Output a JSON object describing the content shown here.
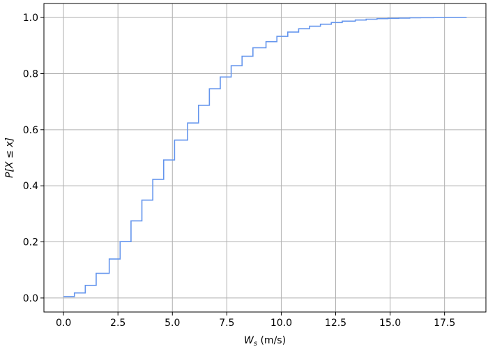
{
  "chart_data": {
    "type": "line",
    "title": "",
    "xlabel_main": "W",
    "xlabel_sub": "s",
    "xlabel_unit": " (m/s)",
    "ylabel": "P[X ≤ x]",
    "xlim": [
      -0.9,
      19.4
    ],
    "ylim": [
      -0.05,
      1.05
    ],
    "xticks": [
      0.0,
      2.5,
      5.0,
      7.5,
      10.0,
      12.5,
      15.0,
      17.5
    ],
    "xtick_labels": [
      "0.0",
      "2.5",
      "5.0",
      "7.5",
      "10.0",
      "12.5",
      "15.0",
      "17.5"
    ],
    "yticks": [
      0.0,
      0.2,
      0.4,
      0.6,
      0.8,
      1.0
    ],
    "ytick_labels": [
      "0.0",
      "0.2",
      "0.4",
      "0.6",
      "0.8",
      "1.0"
    ],
    "grid": true,
    "series": [
      {
        "color": "#6495ED",
        "drawstyle": "steps-post",
        "x": [
          0.0,
          0.5,
          1.0,
          1.5,
          2.1,
          2.6,
          3.1,
          3.6,
          4.1,
          4.6,
          5.1,
          5.7,
          6.2,
          6.7,
          7.2,
          7.7,
          8.2,
          8.7,
          9.3,
          9.8,
          10.3,
          10.8,
          11.3,
          11.8,
          12.3,
          12.8,
          13.4,
          13.9,
          14.4,
          14.9,
          15.4,
          15.9,
          16.4,
          17.0,
          17.5,
          18.5
        ],
        "y": [
          0.005,
          0.018,
          0.045,
          0.088,
          0.139,
          0.201,
          0.275,
          0.349,
          0.423,
          0.492,
          0.563,
          0.624,
          0.687,
          0.746,
          0.788,
          0.828,
          0.862,
          0.892,
          0.914,
          0.933,
          0.948,
          0.96,
          0.969,
          0.976,
          0.982,
          0.987,
          0.991,
          0.994,
          0.996,
          0.997,
          0.998,
          0.999,
          0.9993,
          0.9996,
          0.9999,
          1.0
        ]
      }
    ]
  }
}
